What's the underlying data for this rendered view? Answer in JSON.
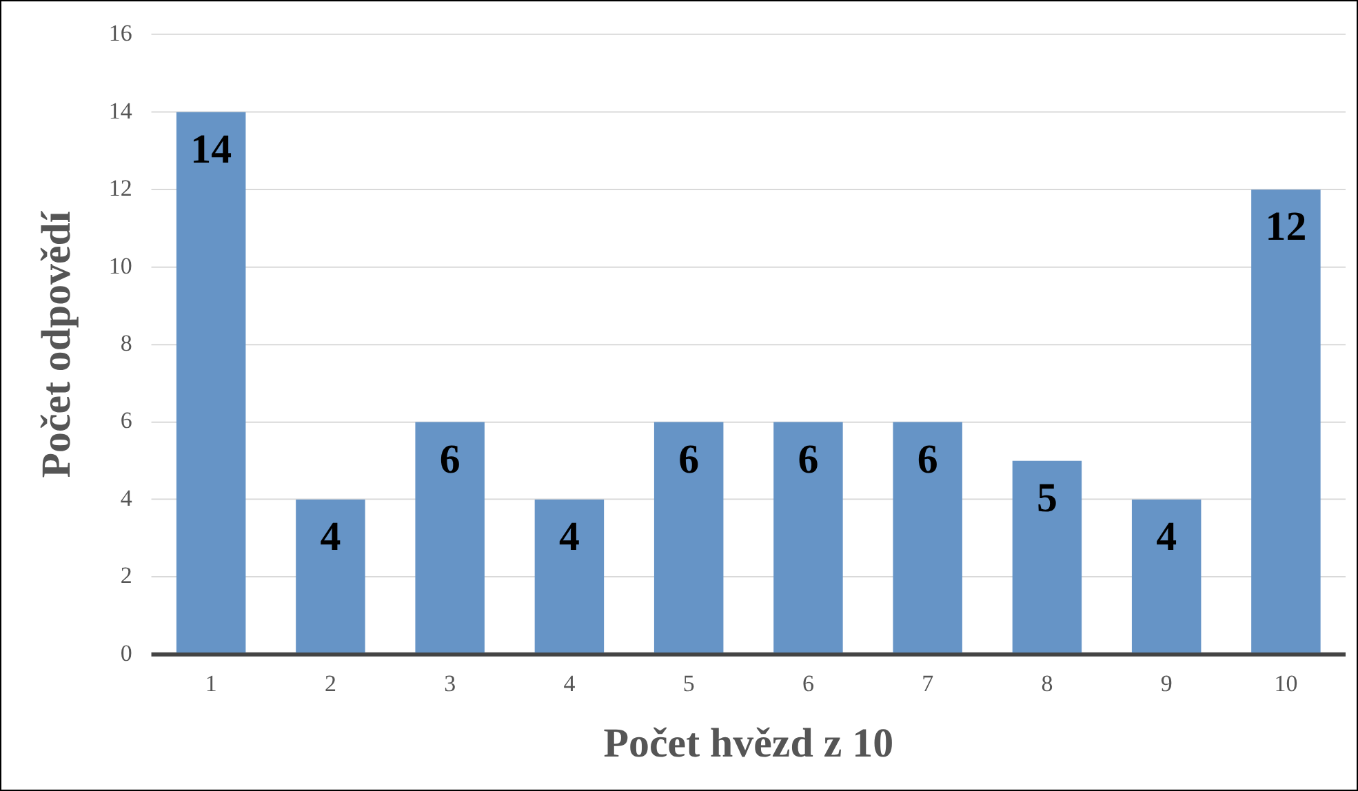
{
  "chart_data": {
    "type": "bar",
    "categories": [
      "1",
      "2",
      "3",
      "4",
      "5",
      "6",
      "7",
      "8",
      "9",
      "10"
    ],
    "values": [
      14,
      4,
      6,
      4,
      6,
      6,
      6,
      5,
      4,
      12
    ],
    "color": "#6694c6",
    "xlabel": "Počet hvězd z 10",
    "ylabel": "Počet odpovědí",
    "ylim": [
      0,
      16
    ],
    "yticks": [
      0,
      2,
      4,
      6,
      8,
      10,
      12,
      14,
      16
    ],
    "grid": "y",
    "legend": false,
    "data_labels": true
  }
}
